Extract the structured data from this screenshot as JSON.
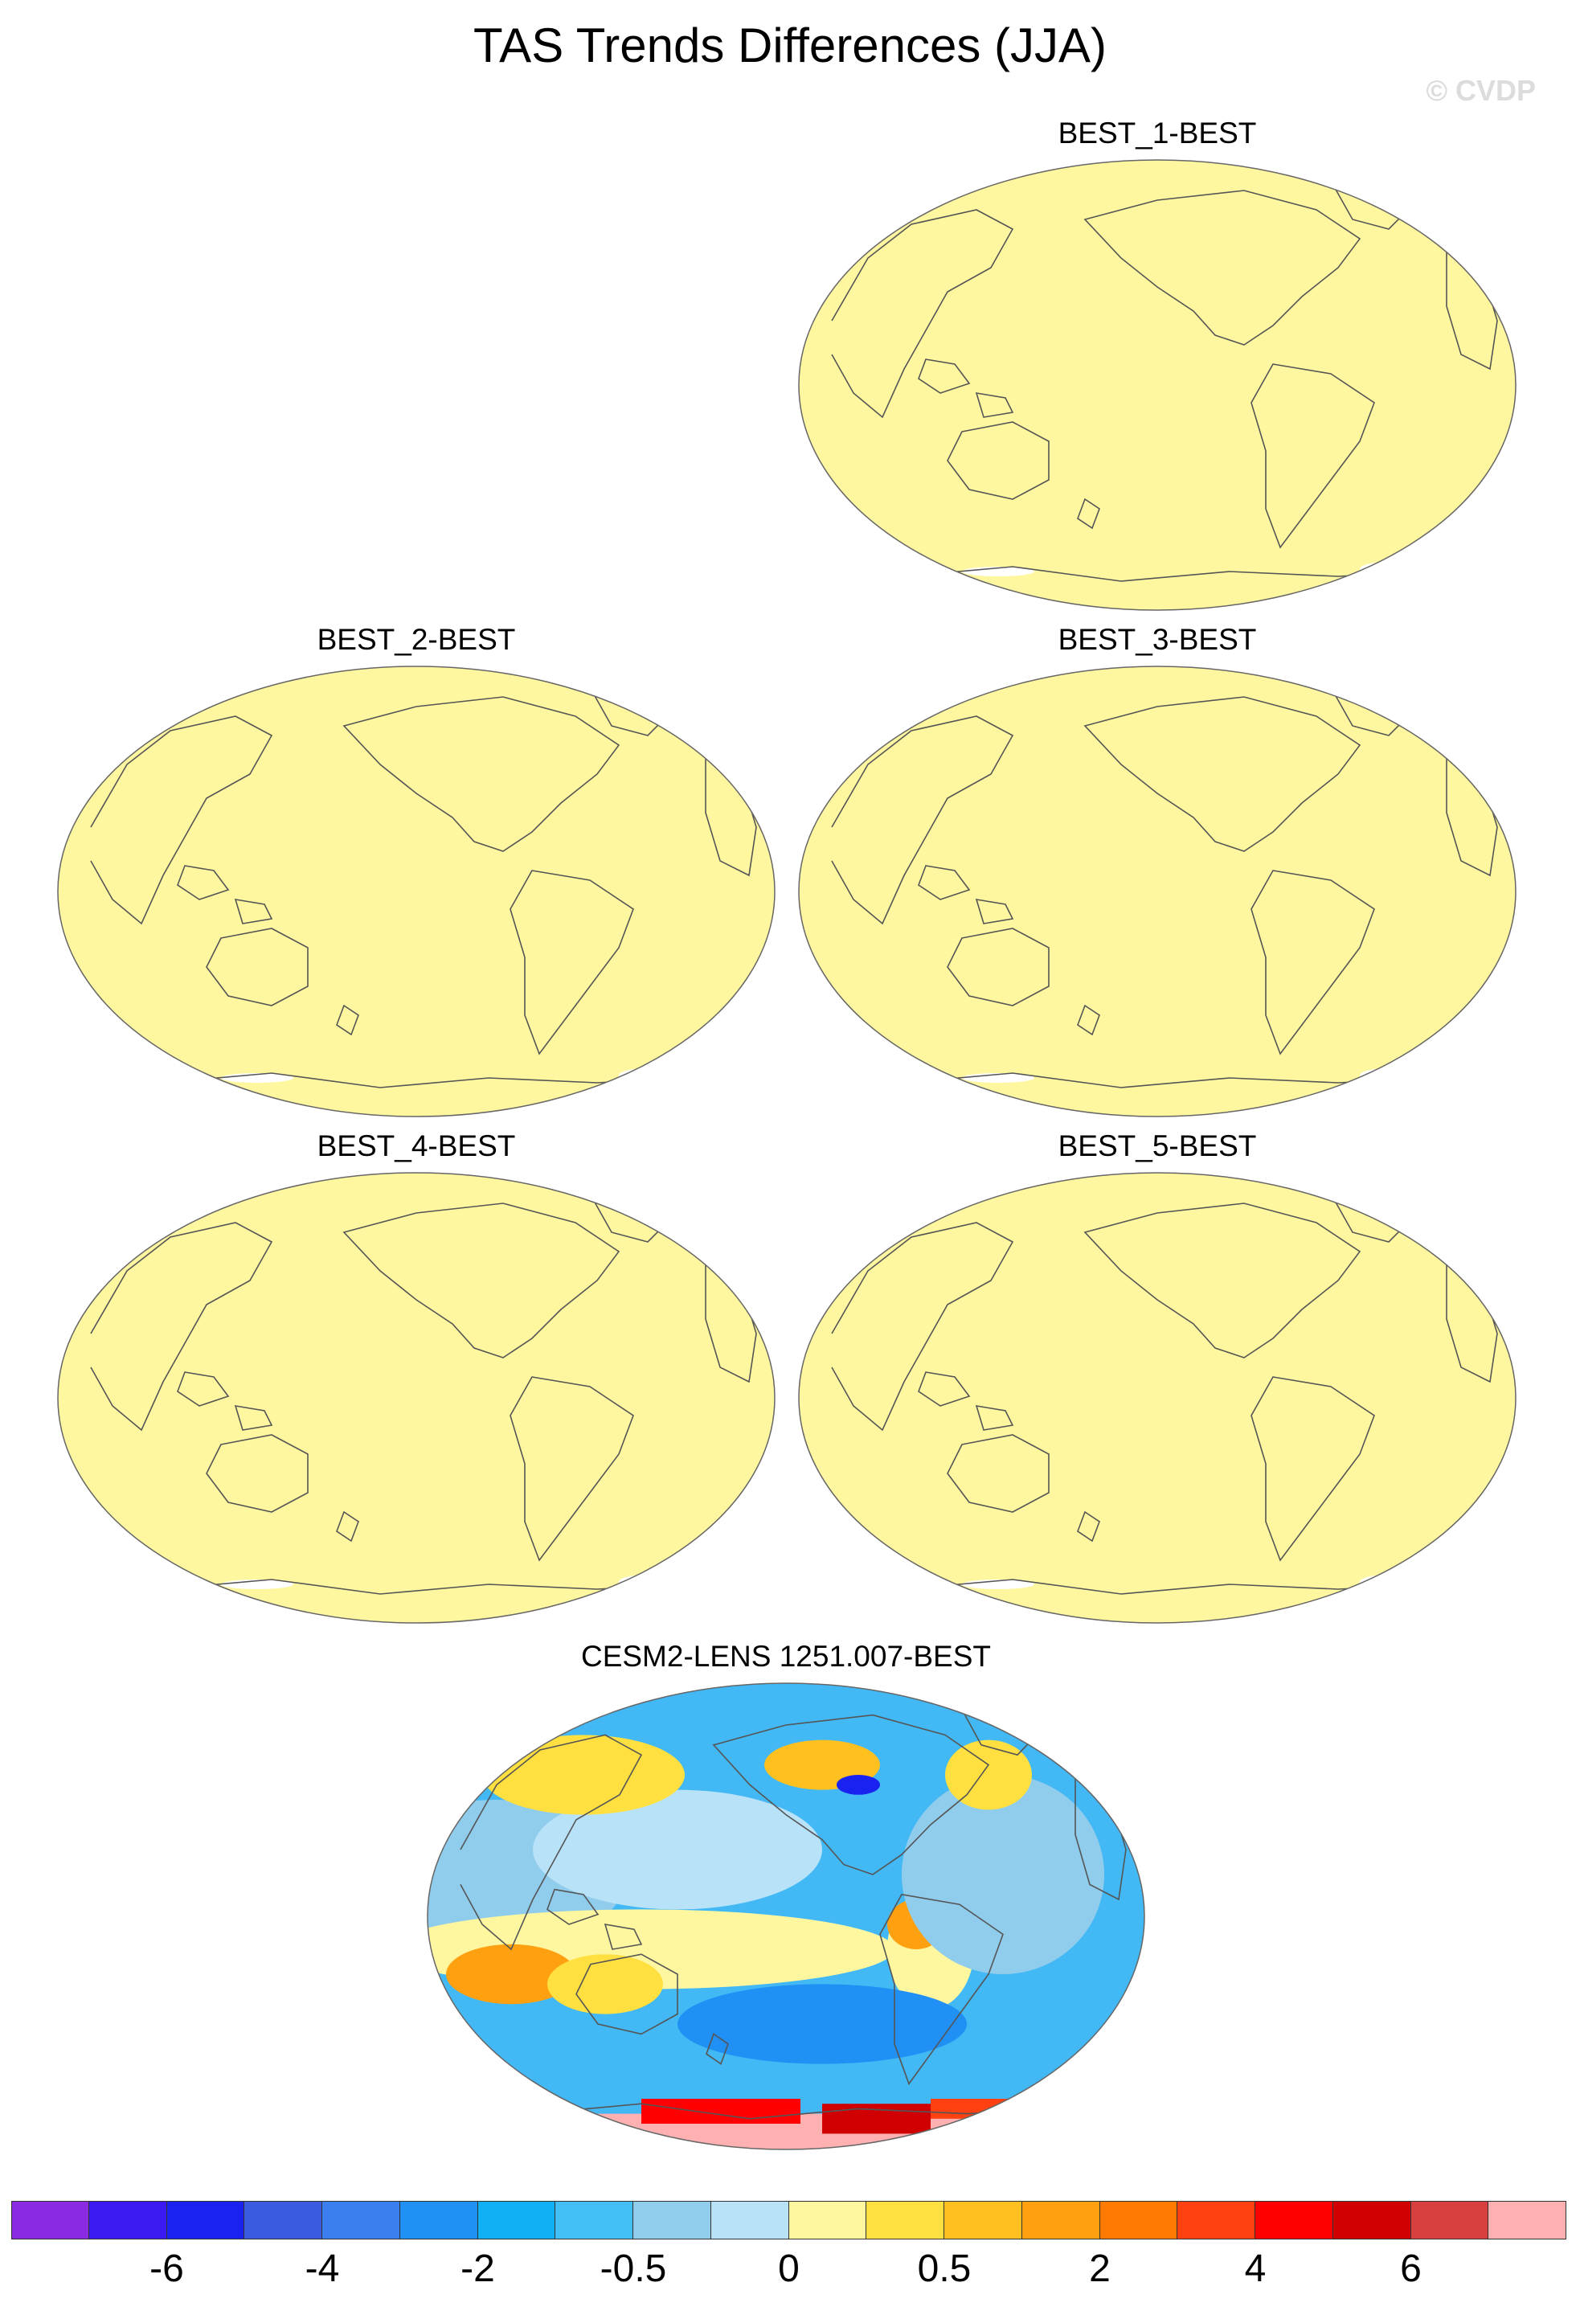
{
  "title": "TAS Trends Differences (JJA)",
  "watermark": "© CVDP",
  "panels": [
    {
      "label": "BEST_1-BEST",
      "fill": "#fff7a0"
    },
    {
      "label": "BEST_2-BEST",
      "fill": "#fff7a0"
    },
    {
      "label": "BEST_3-BEST",
      "fill": "#fff7a0"
    },
    {
      "label": "BEST_4-BEST",
      "fill": "#fff7a0"
    },
    {
      "label": "BEST_5-BEST",
      "fill": "#fff7a0"
    },
    {
      "label": "CESM2-LENS 1251.007-BEST",
      "fill": "#42b8f5"
    }
  ],
  "colorbar": {
    "colors": [
      "#8a2be2",
      "#3a1af0",
      "#1a22f0",
      "#3a5ae0",
      "#3a7ef0",
      "#2090f5",
      "#10b0f5",
      "#42c0f5",
      "#90ccec",
      "#b8e2f8",
      "#fff7a0",
      "#ffe040",
      "#ffc020",
      "#ffa010",
      "#ff7a00",
      "#ff4010",
      "#ff0000",
      "#d00000",
      "#d84040",
      "#ffb0b0"
    ],
    "labels": [
      "-6",
      "-4",
      "-2",
      "-0.5",
      "0",
      "0.5",
      "2",
      "4",
      "6"
    ]
  }
}
